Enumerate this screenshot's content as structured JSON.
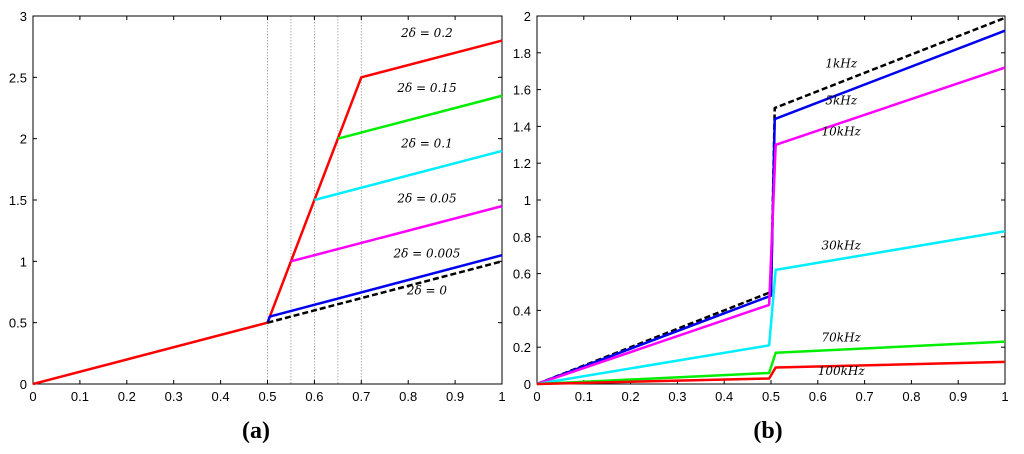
{
  "figure": {
    "panel_a_label": "(a)",
    "panel_b_label": "(b)"
  },
  "colors": {
    "red": "#ff0000",
    "green": "#00ee00",
    "cyan": "#00eeff",
    "magenta": "#ff00ff",
    "blue": "#0000ee",
    "black": "#000000",
    "vline": "#999999"
  },
  "chart_data": [
    {
      "type": "line",
      "panel": "(a)",
      "xlim": [
        0,
        1
      ],
      "ylim": [
        0,
        3
      ],
      "xticks": [
        0,
        0.1,
        0.2,
        0.3,
        0.4,
        0.5,
        0.6,
        0.7,
        0.8,
        0.9,
        1
      ],
      "yticks": [
        0,
        0.5,
        1,
        1.5,
        2,
        2.5,
        3
      ],
      "xtick_labels": [
        "0",
        "0.1",
        "0.2",
        "0.3",
        "0.4",
        "0.5",
        "0.6",
        "0.7",
        "0.8",
        "0.9",
        "1"
      ],
      "ytick_labels": [
        "0",
        "0.5",
        "1",
        "1.5",
        "2",
        "2.5",
        "3"
      ],
      "grid": false,
      "vertical_reference_lines": [
        0.5,
        0.55,
        0.6,
        0.65,
        0.7
      ],
      "series": [
        {
          "color": "red",
          "dashed": false,
          "x": [
            0,
            0.5,
            0.7,
            1
          ],
          "y": [
            0,
            0.5,
            2.5,
            2.8
          ]
        },
        {
          "color": "green",
          "dashed": false,
          "x": [
            0.65,
            1
          ],
          "y": [
            2.0,
            2.35
          ]
        },
        {
          "color": "cyan",
          "dashed": false,
          "x": [
            0.6,
            1
          ],
          "y": [
            1.5,
            1.9
          ]
        },
        {
          "color": "magenta",
          "dashed": false,
          "x": [
            0.55,
            1
          ],
          "y": [
            1.0,
            1.45
          ]
        },
        {
          "color": "blue",
          "dashed": false,
          "x": [
            0.5,
            0.505,
            1
          ],
          "y": [
            0.5,
            0.55,
            1.05
          ]
        },
        {
          "color": "black",
          "dashed": true,
          "x": [
            0.5,
            1
          ],
          "y": [
            0.5,
            1.0
          ]
        }
      ],
      "annotations": [
        {
          "text": "2δ = 0.2",
          "x": 0.84,
          "y": 2.83
        },
        {
          "text": "2δ = 0.15",
          "x": 0.84,
          "y": 2.38
        },
        {
          "text": "2δ = 0.1",
          "x": 0.84,
          "y": 1.93
        },
        {
          "text": "2δ = 0.05",
          "x": 0.84,
          "y": 1.48
        },
        {
          "text": "2δ = 0.005",
          "x": 0.84,
          "y": 1.03
        },
        {
          "text": "2δ = 0",
          "x": 0.84,
          "y": 0.73
        }
      ]
    },
    {
      "type": "line",
      "panel": "(b)",
      "xlim": [
        0,
        1
      ],
      "ylim": [
        0,
        2
      ],
      "xticks": [
        0,
        0.1,
        0.2,
        0.3,
        0.4,
        0.5,
        0.6,
        0.7,
        0.8,
        0.9,
        1
      ],
      "yticks": [
        0,
        0.2,
        0.4,
        0.6,
        0.8,
        1,
        1.2,
        1.4,
        1.6,
        1.8,
        2
      ],
      "xtick_labels": [
        "0",
        "0.1",
        "0.2",
        "0.3",
        "0.4",
        "0.5",
        "0.6",
        "0.7",
        "0.8",
        "0.9",
        "1"
      ],
      "ytick_labels": [
        "0",
        "0.2",
        "0.4",
        "0.6",
        "0.8",
        "1",
        "1.2",
        "1.4",
        "1.6",
        "1.8",
        "2"
      ],
      "grid": false,
      "series": [
        {
          "color": "black",
          "dashed": true,
          "x": [
            0,
            0.5,
            0.508,
            1
          ],
          "y": [
            0,
            0.5,
            1.5,
            1.99
          ]
        },
        {
          "color": "blue",
          "dashed": false,
          "x": [
            0,
            0.5,
            0.508,
            1
          ],
          "y": [
            0,
            0.48,
            1.44,
            1.92
          ]
        },
        {
          "color": "magenta",
          "dashed": false,
          "x": [
            0,
            0.496,
            0.51,
            1
          ],
          "y": [
            0,
            0.43,
            1.3,
            1.72
          ]
        },
        {
          "color": "cyan",
          "dashed": false,
          "x": [
            0,
            0.496,
            0.51,
            1
          ],
          "y": [
            0,
            0.21,
            0.62,
            0.83
          ]
        },
        {
          "color": "green",
          "dashed": false,
          "x": [
            0,
            0.496,
            0.51,
            1
          ],
          "y": [
            0,
            0.06,
            0.17,
            0.23
          ]
        },
        {
          "color": "red",
          "dashed": false,
          "x": [
            0,
            0.496,
            0.51,
            1
          ],
          "y": [
            0,
            0.03,
            0.09,
            0.12
          ]
        }
      ],
      "annotations": [
        {
          "text": "1kHz",
          "x": 0.65,
          "y": 1.72
        },
        {
          "text": "5kHz",
          "x": 0.65,
          "y": 1.52
        },
        {
          "text": "10kHz",
          "x": 0.65,
          "y": 1.35
        },
        {
          "text": "30kHz",
          "x": 0.65,
          "y": 0.73
        },
        {
          "text": "70kHz",
          "x": 0.65,
          "y": 0.23
        },
        {
          "text": "100kHz",
          "x": 0.65,
          "y": 0.05
        }
      ]
    }
  ]
}
